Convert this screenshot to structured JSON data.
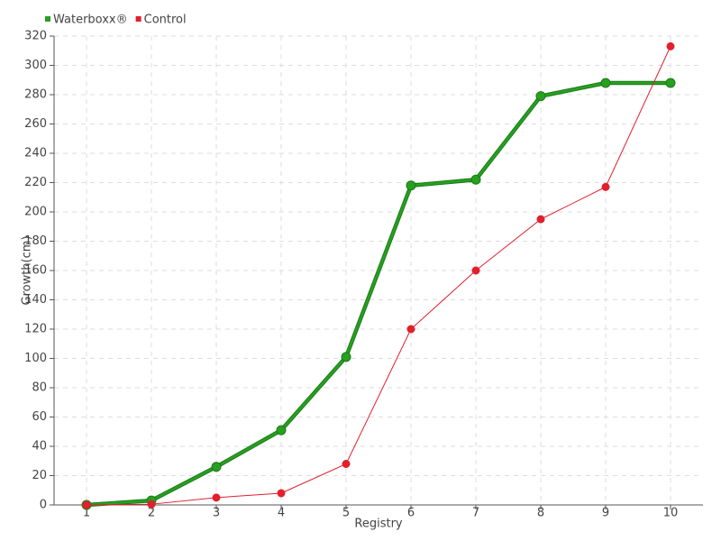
{
  "chart_data": {
    "type": "line",
    "x_label": "Registry",
    "y_label": "Growth(cm)",
    "categories": [
      "1",
      "2",
      "3",
      "4",
      "5",
      "6",
      "7",
      "8",
      "9",
      "10"
    ],
    "series": [
      {
        "name": "Waterboxx®",
        "color": "#27a020",
        "values": [
          0,
          3,
          26,
          51,
          101,
          218,
          222,
          279,
          288,
          288
        ]
      },
      {
        "name": "Control",
        "color": "#e21f2d",
        "values": [
          0,
          0.5,
          5,
          8,
          28,
          120,
          160,
          195,
          217,
          313
        ]
      }
    ],
    "ylim": [
      0,
      320
    ],
    "yticks": [
      0,
      20,
      40,
      60,
      80,
      100,
      120,
      140,
      160,
      180,
      200,
      220,
      240,
      260,
      280,
      300,
      320
    ],
    "grid": true,
    "legend": "top-left"
  }
}
